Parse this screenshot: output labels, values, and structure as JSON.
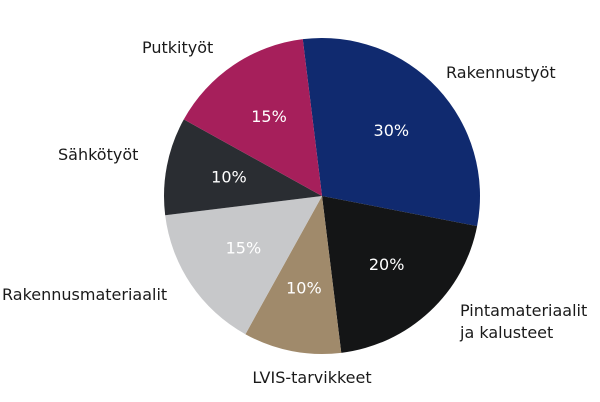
{
  "chart_data": {
    "type": "pie",
    "title": "",
    "unit": "%",
    "slices": [
      {
        "label": "Rakennustyöt",
        "value": 30,
        "display": "30%",
        "color": "#102a6f"
      },
      {
        "label": "Pintamateriaalit ja kalusteet",
        "label_lines": [
          "Pintamateriaalit",
          "ja kalusteet"
        ],
        "value": 20,
        "display": "20%",
        "color": "#141516"
      },
      {
        "label": "LVIS-tarvikkeet",
        "value": 10,
        "display": "10%",
        "color": "#a08a6b"
      },
      {
        "label": "Rakennusmateriaalit",
        "value": 15,
        "display": "15%",
        "color": "#c7c8ca"
      },
      {
        "label": "Sähkötyöt",
        "value": 10,
        "display": "10%",
        "color": "#2a2d32"
      },
      {
        "label": "Putkityöt",
        "value": 15,
        "display": "15%",
        "color": "#a61f5b"
      }
    ]
  }
}
